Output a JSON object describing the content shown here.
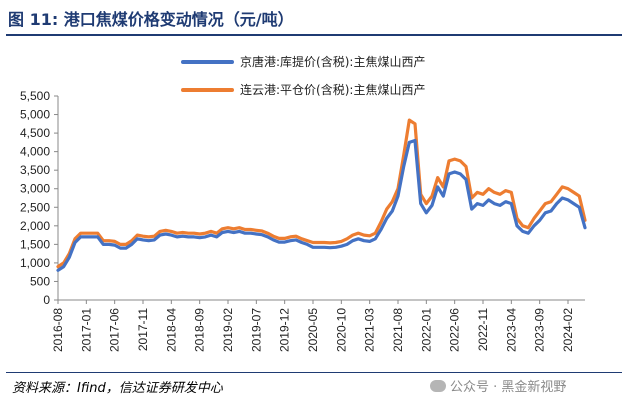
{
  "figure": {
    "title": "图 11:  港口焦煤价格变动情况（元/吨）",
    "source": "资料来源：Ifind，信达证券研发中心",
    "watermark": "公众号 · 黑金新视野"
  },
  "colors": {
    "series1": "#4472c4",
    "series2": "#ed7d31",
    "axis": "#888888",
    "title": "#1f3b73"
  },
  "chart_data": {
    "type": "line",
    "title": "",
    "xlabel": "",
    "ylabel": "",
    "ylim": [
      0,
      5500
    ],
    "yticks": [
      "0",
      "500",
      "1,000",
      "1,500",
      "2,000",
      "2,500",
      "3,000",
      "3,500",
      "4,000",
      "4,500",
      "5,000",
      "5,500"
    ],
    "xlim": [
      "2016-08",
      "2024-05"
    ],
    "xticks": [
      "2016-08",
      "2017-01",
      "2017-06",
      "2017-11",
      "2018-04",
      "2018-09",
      "2019-02",
      "2019-07",
      "2019-12",
      "2020-05",
      "2020-10",
      "2021-03",
      "2021-08",
      "2022-01",
      "2022-06",
      "2022-11",
      "2023-04",
      "2023-09",
      "2024-02"
    ],
    "grid": false,
    "legend": "top",
    "series": [
      {
        "name": "京唐港:库提价(含税):主焦煤山西产",
        "color": "#4472c4",
        "points": [
          [
            "2016-08",
            800
          ],
          [
            "2016-09",
            900
          ],
          [
            "2016-10",
            1150
          ],
          [
            "2016-11",
            1550
          ],
          [
            "2016-12",
            1700
          ],
          [
            "2017-01",
            1700
          ],
          [
            "2017-02",
            1700
          ],
          [
            "2017-03",
            1700
          ],
          [
            "2017-04",
            1500
          ],
          [
            "2017-05",
            1500
          ],
          [
            "2017-06",
            1480
          ],
          [
            "2017-07",
            1400
          ],
          [
            "2017-08",
            1400
          ],
          [
            "2017-09",
            1500
          ],
          [
            "2017-10",
            1650
          ],
          [
            "2017-11",
            1620
          ],
          [
            "2017-12",
            1600
          ],
          [
            "2018-01",
            1620
          ],
          [
            "2018-02",
            1750
          ],
          [
            "2018-03",
            1780
          ],
          [
            "2018-04",
            1750
          ],
          [
            "2018-05",
            1700
          ],
          [
            "2018-06",
            1720
          ],
          [
            "2018-07",
            1700
          ],
          [
            "2018-08",
            1700
          ],
          [
            "2018-09",
            1680
          ],
          [
            "2018-10",
            1700
          ],
          [
            "2018-11",
            1750
          ],
          [
            "2018-12",
            1700
          ],
          [
            "2019-01",
            1820
          ],
          [
            "2019-02",
            1850
          ],
          [
            "2019-03",
            1820
          ],
          [
            "2019-04",
            1850
          ],
          [
            "2019-05",
            1800
          ],
          [
            "2019-06",
            1800
          ],
          [
            "2019-07",
            1780
          ],
          [
            "2019-08",
            1760
          ],
          [
            "2019-09",
            1700
          ],
          [
            "2019-10",
            1620
          ],
          [
            "2019-11",
            1560
          ],
          [
            "2019-12",
            1560
          ],
          [
            "2020-01",
            1600
          ],
          [
            "2020-02",
            1620
          ],
          [
            "2020-03",
            1550
          ],
          [
            "2020-04",
            1500
          ],
          [
            "2020-05",
            1420
          ],
          [
            "2020-06",
            1420
          ],
          [
            "2020-07",
            1420
          ],
          [
            "2020-08",
            1410
          ],
          [
            "2020-09",
            1420
          ],
          [
            "2020-10",
            1450
          ],
          [
            "2020-11",
            1500
          ],
          [
            "2020-12",
            1600
          ],
          [
            "2021-01",
            1650
          ],
          [
            "2021-02",
            1600
          ],
          [
            "2021-03",
            1580
          ],
          [
            "2021-04",
            1650
          ],
          [
            "2021-05",
            1900
          ],
          [
            "2021-06",
            2200
          ],
          [
            "2021-07",
            2400
          ],
          [
            "2021-08",
            2800
          ],
          [
            "2021-09",
            3600
          ],
          [
            "2021-10",
            4250
          ],
          [
            "2021-11",
            4300
          ],
          [
            "2021-12",
            2600
          ],
          [
            "2022-01",
            2350
          ],
          [
            "2022-02",
            2550
          ],
          [
            "2022-03",
            3050
          ],
          [
            "2022-04",
            2800
          ],
          [
            "2022-05",
            3400
          ],
          [
            "2022-06",
            3450
          ],
          [
            "2022-07",
            3400
          ],
          [
            "2022-08",
            3250
          ],
          [
            "2022-09",
            2450
          ],
          [
            "2022-10",
            2600
          ],
          [
            "2022-11",
            2550
          ],
          [
            "2022-12",
            2700
          ],
          [
            "2023-01",
            2600
          ],
          [
            "2023-02",
            2550
          ],
          [
            "2023-03",
            2650
          ],
          [
            "2023-04",
            2600
          ],
          [
            "2023-05",
            2000
          ],
          [
            "2023-06",
            1850
          ],
          [
            "2023-07",
            1800
          ],
          [
            "2023-08",
            2000
          ],
          [
            "2023-09",
            2150
          ],
          [
            "2023-10",
            2350
          ],
          [
            "2023-11",
            2400
          ],
          [
            "2023-12",
            2600
          ],
          [
            "2024-01",
            2750
          ],
          [
            "2024-02",
            2700
          ],
          [
            "2024-03",
            2600
          ],
          [
            "2024-04",
            2500
          ],
          [
            "2024-05",
            1950
          ]
        ]
      },
      {
        "name": "连云港:平仓价(含税):主焦煤山西产",
        "color": "#ed7d31",
        "points": [
          [
            "2016-08",
            900
          ],
          [
            "2016-09",
            1000
          ],
          [
            "2016-10",
            1250
          ],
          [
            "2016-11",
            1650
          ],
          [
            "2016-12",
            1800
          ],
          [
            "2017-01",
            1800
          ],
          [
            "2017-02",
            1800
          ],
          [
            "2017-03",
            1800
          ],
          [
            "2017-04",
            1600
          ],
          [
            "2017-05",
            1600
          ],
          [
            "2017-06",
            1580
          ],
          [
            "2017-07",
            1500
          ],
          [
            "2017-08",
            1500
          ],
          [
            "2017-09",
            1600
          ],
          [
            "2017-10",
            1750
          ],
          [
            "2017-11",
            1720
          ],
          [
            "2017-12",
            1700
          ],
          [
            "2018-01",
            1720
          ],
          [
            "2018-02",
            1850
          ],
          [
            "2018-03",
            1880
          ],
          [
            "2018-04",
            1850
          ],
          [
            "2018-05",
            1800
          ],
          [
            "2018-06",
            1820
          ],
          [
            "2018-07",
            1800
          ],
          [
            "2018-08",
            1800
          ],
          [
            "2018-09",
            1780
          ],
          [
            "2018-10",
            1800
          ],
          [
            "2018-11",
            1850
          ],
          [
            "2018-12",
            1800
          ],
          [
            "2019-01",
            1920
          ],
          [
            "2019-02",
            1950
          ],
          [
            "2019-03",
            1920
          ],
          [
            "2019-04",
            1950
          ],
          [
            "2019-05",
            1900
          ],
          [
            "2019-06",
            1900
          ],
          [
            "2019-07",
            1880
          ],
          [
            "2019-08",
            1860
          ],
          [
            "2019-09",
            1800
          ],
          [
            "2019-10",
            1720
          ],
          [
            "2019-11",
            1660
          ],
          [
            "2019-12",
            1660
          ],
          [
            "2020-01",
            1700
          ],
          [
            "2020-02",
            1720
          ],
          [
            "2020-03",
            1650
          ],
          [
            "2020-04",
            1600
          ],
          [
            "2020-05",
            1550
          ],
          [
            "2020-06",
            1550
          ],
          [
            "2020-07",
            1550
          ],
          [
            "2020-08",
            1540
          ],
          [
            "2020-09",
            1550
          ],
          [
            "2020-10",
            1580
          ],
          [
            "2020-11",
            1650
          ],
          [
            "2020-12",
            1750
          ],
          [
            "2021-01",
            1800
          ],
          [
            "2021-02",
            1750
          ],
          [
            "2021-03",
            1730
          ],
          [
            "2021-04",
            1800
          ],
          [
            "2021-05",
            2100
          ],
          [
            "2021-06",
            2450
          ],
          [
            "2021-07",
            2650
          ],
          [
            "2021-08",
            3000
          ],
          [
            "2021-09",
            3900
          ],
          [
            "2021-10",
            4850
          ],
          [
            "2021-11",
            4750
          ],
          [
            "2021-12",
            2850
          ],
          [
            "2022-01",
            2600
          ],
          [
            "2022-02",
            2800
          ],
          [
            "2022-03",
            3300
          ],
          [
            "2022-04",
            3050
          ],
          [
            "2022-05",
            3750
          ],
          [
            "2022-06",
            3800
          ],
          [
            "2022-07",
            3750
          ],
          [
            "2022-08",
            3600
          ],
          [
            "2022-09",
            2750
          ],
          [
            "2022-10",
            2900
          ],
          [
            "2022-11",
            2850
          ],
          [
            "2022-12",
            3000
          ],
          [
            "2023-01",
            2900
          ],
          [
            "2023-02",
            2850
          ],
          [
            "2023-03",
            2950
          ],
          [
            "2023-04",
            2900
          ],
          [
            "2023-05",
            2200
          ],
          [
            "2023-06",
            2000
          ],
          [
            "2023-07",
            1950
          ],
          [
            "2023-08",
            2200
          ],
          [
            "2023-09",
            2400
          ],
          [
            "2023-10",
            2600
          ],
          [
            "2023-11",
            2650
          ],
          [
            "2023-12",
            2850
          ],
          [
            "2024-01",
            3050
          ],
          [
            "2024-02",
            3000
          ],
          [
            "2024-03",
            2900
          ],
          [
            "2024-04",
            2800
          ],
          [
            "2024-05",
            2150
          ]
        ]
      }
    ]
  }
}
